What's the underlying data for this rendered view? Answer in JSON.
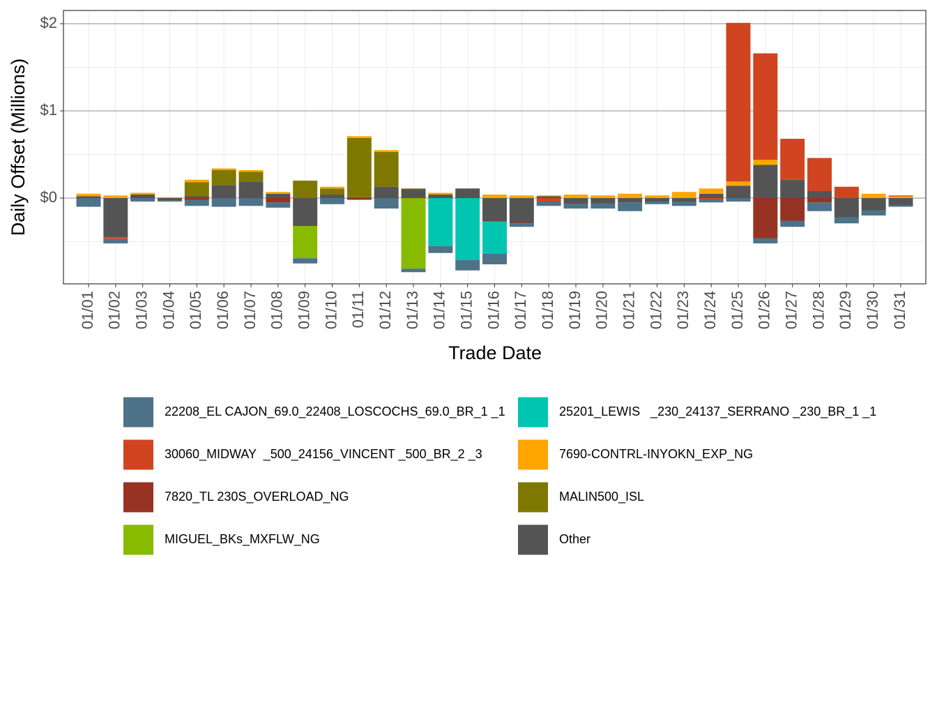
{
  "chart_data": {
    "type": "bar",
    "stacked": true,
    "x_label": "Trade Date",
    "y_label": "Daily Offset (Millions)",
    "categories": [
      "01/01",
      "01/02",
      "01/03",
      "01/04",
      "01/05",
      "01/06",
      "01/07",
      "01/08",
      "01/09",
      "01/10",
      "01/11",
      "01/12",
      "01/13",
      "01/14",
      "01/15",
      "01/16",
      "01/17",
      "01/18",
      "01/19",
      "01/20",
      "01/21",
      "01/22",
      "01/23",
      "01/24",
      "01/25",
      "01/26",
      "01/27",
      "01/28",
      "01/29",
      "01/30",
      "01/31"
    ],
    "ylim": [
      -0.984,
      2.152
    ],
    "yticks": [
      {
        "value": 0,
        "label": "$0"
      },
      {
        "value": 1,
        "label": "$1"
      },
      {
        "value": 2,
        "label": "$2"
      }
    ],
    "y_minor_grid": [
      -0.5,
      0.5,
      1.5
    ],
    "grid": true,
    "legend_position": "bottom",
    "series": [
      {
        "name": "22208_EL CAJON_69.0_22408_LOSCOCHS_69.0_BR_1 _1",
        "color": "#4e7388",
        "values": [
          -0.1,
          -0.05,
          -0.04,
          -0.01,
          -0.07,
          -0.1,
          -0.09,
          -0.06,
          -0.06,
          -0.07,
          0,
          -0.12,
          -0.04,
          -0.08,
          -0.12,
          -0.12,
          -0.04,
          -0.05,
          -0.05,
          -0.06,
          -0.1,
          -0.03,
          -0.05,
          -0.03,
          -0.04,
          -0.06,
          -0.07,
          -0.1,
          -0.07,
          -0.06,
          -0.02
        ]
      },
      {
        "name": "25201_LEWIS   _230_24137_SERRANO _230_BR_1 _1",
        "color": "#00c5b0",
        "values": [
          0,
          0,
          0,
          0,
          0,
          0,
          0,
          0,
          0,
          0,
          0,
          0,
          0,
          -0.55,
          -0.71,
          -0.37,
          0,
          0,
          0,
          0,
          0,
          0,
          0,
          0,
          0,
          0,
          0,
          0,
          0,
          0,
          0
        ]
      },
      {
        "name": "30060_MIDWAY  _500_24156_VINCENT _500_BR_2 _3",
        "color": "#d04520",
        "values": [
          0,
          -0.02,
          0,
          0,
          0,
          0,
          0,
          0,
          0,
          0,
          0,
          0,
          0,
          0,
          0,
          0,
          0,
          -0.04,
          0,
          0,
          0,
          0,
          0,
          -0.02,
          1.82,
          1.22,
          0.47,
          0.38,
          0.13,
          0,
          0.01
        ]
      },
      {
        "name": "7690-CONTRL-INYOKN_EXP_NG",
        "color": "#ffa500",
        "values": [
          0.03,
          0.03,
          0.02,
          0.01,
          0.03,
          0.02,
          0.02,
          0.02,
          0,
          0.02,
          0.02,
          0.02,
          0,
          0.02,
          0,
          0.04,
          0.03,
          0.01,
          0.04,
          0.03,
          0.05,
          0.03,
          0.07,
          0.06,
          0.05,
          0.06,
          0,
          0,
          0,
          0.05,
          0.02
        ]
      },
      {
        "name": "7820_TL 230S_OVERLOAD_NG",
        "color": "#963322",
        "values": [
          0,
          0,
          0,
          0,
          -0.02,
          0,
          0,
          -0.05,
          0,
          0,
          -0.02,
          0,
          0,
          0,
          0,
          -0.01,
          -0.01,
          0,
          0,
          0,
          0,
          0,
          0,
          0,
          0,
          -0.46,
          -0.26,
          -0.05,
          0,
          0,
          0
        ]
      },
      {
        "name": "MALIN500_ISL",
        "color": "#7f7800",
        "values": [
          0,
          0,
          0,
          0,
          0.16,
          0.17,
          0.11,
          0,
          0.2,
          0.07,
          0.68,
          0.4,
          0.01,
          0,
          0,
          0,
          0,
          0,
          0,
          0,
          0,
          0,
          0,
          0,
          0,
          0,
          0,
          0,
          0,
          0,
          0
        ]
      },
      {
        "name": "MIGUEL_BKs_MXFLW_NG",
        "color": "#86bb00",
        "values": [
          0,
          0,
          0,
          0,
          0,
          0,
          0,
          0,
          -0.37,
          0,
          0,
          0,
          -0.81,
          0,
          0,
          0,
          0,
          0,
          0,
          0,
          0,
          0,
          0,
          0,
          0,
          0,
          0,
          0,
          0,
          0,
          0
        ]
      },
      {
        "name": "Other",
        "color": "#545454",
        "values": [
          0.02,
          -0.45,
          0.04,
          -0.03,
          0.02,
          0.15,
          0.19,
          0.05,
          -0.32,
          0.04,
          0.01,
          0.13,
          0.1,
          0.04,
          0.11,
          -0.26,
          -0.28,
          0.02,
          -0.07,
          -0.06,
          -0.05,
          -0.04,
          -0.04,
          0.05,
          0.14,
          0.38,
          0.21,
          0.08,
          -0.22,
          -0.14,
          -0.08
        ]
      }
    ]
  }
}
